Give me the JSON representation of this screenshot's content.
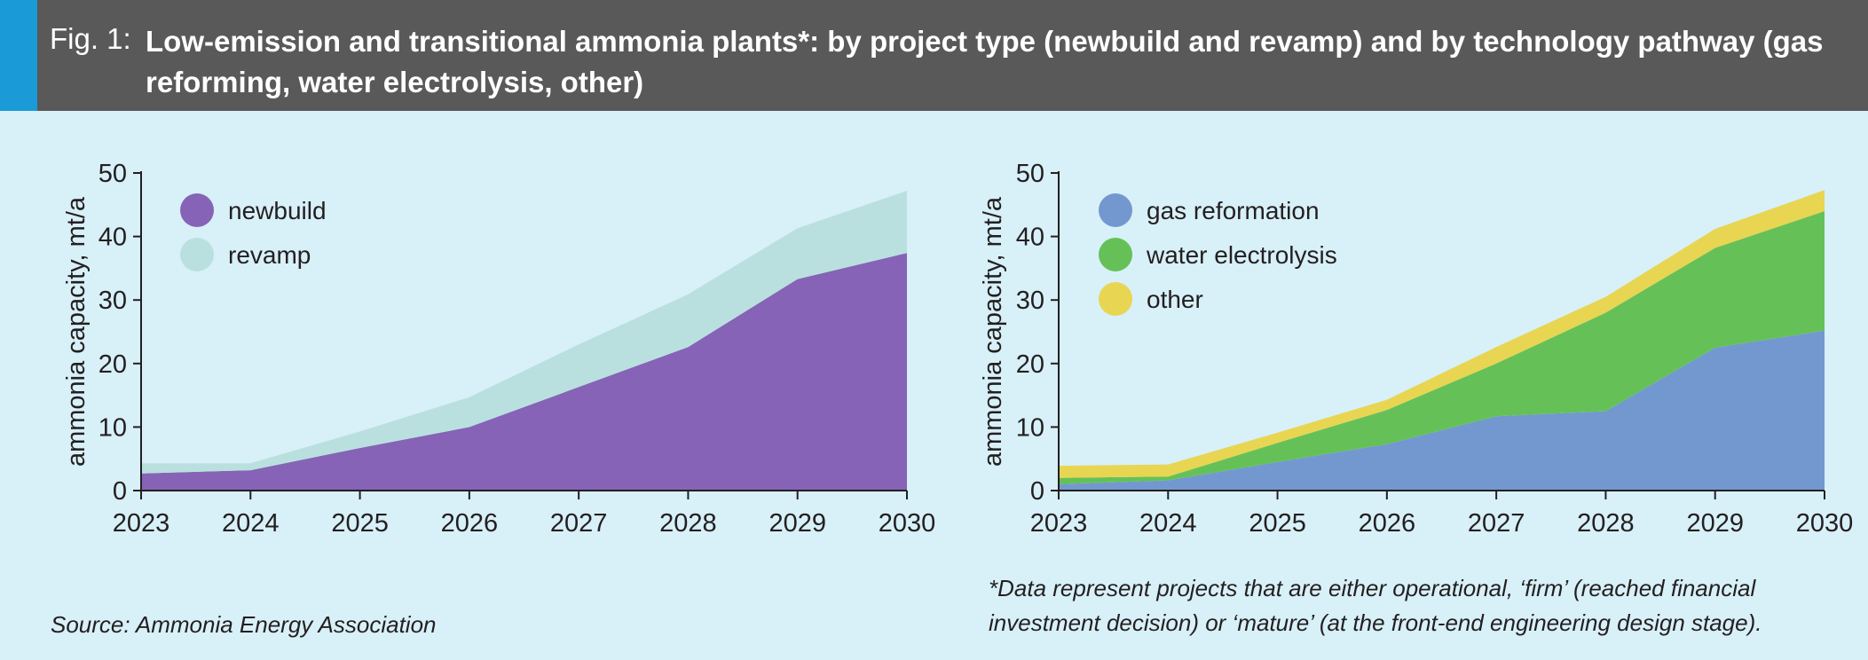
{
  "header": {
    "fig_label": "Fig. 1:",
    "title": "Low-emission and transitional ammonia plants*: by project type (newbuild and revamp) and by technology pathway (gas reforming, water electrolysis, other)",
    "accent_color": "#1a9ad7",
    "background_color": "#595959"
  },
  "chart_data": [
    {
      "type": "area",
      "stacked": true,
      "x": [
        2023,
        2024,
        2025,
        2026,
        2027,
        2028,
        2029,
        2030
      ],
      "xlim": [
        2023,
        2030
      ],
      "ylim": [
        0,
        50
      ],
      "yticks": [
        0,
        10,
        20,
        30,
        40,
        50
      ],
      "xlabel": "",
      "ylabel": "ammonia capacity, mt/a",
      "legend_position": "top-left",
      "grid": false,
      "series": [
        {
          "name": "newbuild",
          "color": "#8663b6",
          "values": [
            2.7,
            3.2,
            6.7,
            10.0,
            16.3,
            22.6,
            33.3,
            37.4
          ]
        },
        {
          "name": "revamp",
          "color": "#b9e0df",
          "values": [
            1.6,
            1.1,
            2.6,
            4.7,
            6.7,
            8.3,
            8.0,
            9.8
          ]
        }
      ]
    },
    {
      "type": "area",
      "stacked": true,
      "x": [
        2023,
        2024,
        2025,
        2026,
        2027,
        2028,
        2029,
        2030
      ],
      "xlim": [
        2023,
        2030
      ],
      "ylim": [
        0,
        50
      ],
      "yticks": [
        0,
        10,
        20,
        30,
        40,
        50
      ],
      "xlabel": "",
      "ylabel": "ammonia capacity, mt/a",
      "legend_position": "top-left",
      "grid": false,
      "series": [
        {
          "name": "gas reformation",
          "color": "#7398cf",
          "values": [
            1.0,
            1.6,
            4.5,
            7.3,
            11.7,
            12.5,
            22.5,
            25.2
          ]
        },
        {
          "name": "water electrolysis",
          "color": "#65c157",
          "values": [
            1.0,
            0.6,
            3.0,
            5.4,
            8.3,
            15.5,
            15.7,
            18.8
          ]
        },
        {
          "name": "other",
          "color": "#e8d552",
          "values": [
            1.9,
            1.9,
            1.6,
            1.6,
            2.6,
            2.5,
            3.0,
            3.3
          ]
        }
      ]
    }
  ],
  "notes": {
    "source": "Source: Ammonia Energy Association",
    "footnote_line1": "*Data represent projects that are either operational, ‘firm’ (reached financial",
    "footnote_line2": "investment decision) or ‘mature’ (at the front-end engineering design stage)."
  }
}
